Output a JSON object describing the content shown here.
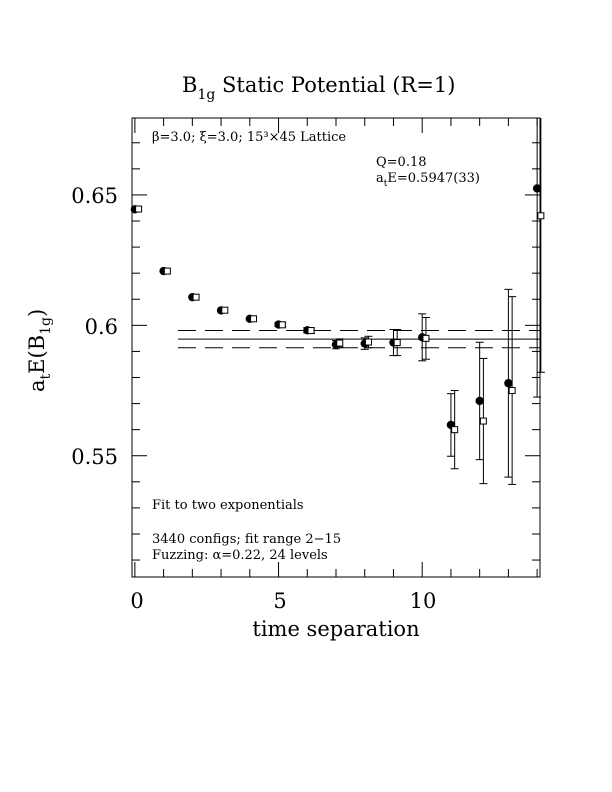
{
  "chart_data": {
    "type": "scatter",
    "title": "B",
    "title_sub": "1g",
    "title_rest": " Static Potential (R=1)",
    "xlabel": "time separation",
    "ylabel": {
      "a": "a",
      "t": "t",
      "e": "E(B",
      "sub": "1g",
      "close": ")"
    },
    "xlim": [
      -0.1,
      14.1
    ],
    "ylim": [
      0.5035,
      0.6795
    ],
    "x_ticks": [
      {
        "value": 0,
        "label": "0"
      },
      {
        "value": 5,
        "label": "5"
      },
      {
        "value": 10,
        "label": "10"
      }
    ],
    "y_ticks": [
      {
        "value": 0.55,
        "label": "0.55"
      },
      {
        "value": 0.6,
        "label": "0.6"
      },
      {
        "value": 0.65,
        "label": "0.65"
      }
    ],
    "annotations": {
      "lattice": "β=3.0; ξ=3.0; 15³×45 Lattice",
      "q": "Q=0.18",
      "energy": {
        "a": "a",
        "t": "t",
        "rest": "E=0.5947(33)"
      },
      "fit": "Fit to two exponentials",
      "configs": "3440 configs; fit range 2−15",
      "fuzzing": "Fuzzing: α=0.22, 24 levels"
    },
    "fit": {
      "value": 0.5947,
      "error": 0.0033,
      "x_range": [
        1.5,
        14.1
      ]
    },
    "series": [
      {
        "marker": "filled-circle",
        "x": [
          0,
          1,
          2,
          3,
          4,
          5,
          6,
          7,
          8,
          9,
          10,
          11,
          12,
          13,
          14
        ],
        "y": [
          0.6445,
          0.6208,
          0.6108,
          0.6057,
          0.6025,
          0.6003,
          0.5981,
          0.5926,
          0.593,
          0.5934,
          0.5954,
          0.5618,
          0.571,
          0.5778,
          0.6525
        ],
        "err": [
          0.0005,
          0.0005,
          0.0006,
          0.0006,
          0.0007,
          0.0008,
          0.001,
          0.0016,
          0.0022,
          0.005,
          0.009,
          0.012,
          0.0225,
          0.036,
          0.08
        ]
      },
      {
        "marker": "open-square",
        "x": [
          0.13,
          1.13,
          2.13,
          3.13,
          4.13,
          5.13,
          6.13,
          7.13,
          8.13,
          9.13,
          10.13,
          11.13,
          12.13,
          13.13,
          14.13
        ],
        "y": [
          0.6446,
          0.6208,
          0.6108,
          0.6058,
          0.6025,
          0.6002,
          0.598,
          0.5932,
          0.5936,
          0.5934,
          0.595,
          0.56,
          0.5633,
          0.575,
          0.642
        ],
        "err": [
          0.0005,
          0.0005,
          0.0006,
          0.0006,
          0.0007,
          0.0008,
          0.001,
          0.0016,
          0.0022,
          0.005,
          0.008,
          0.015,
          0.024,
          0.036,
          0.06
        ]
      }
    ]
  }
}
